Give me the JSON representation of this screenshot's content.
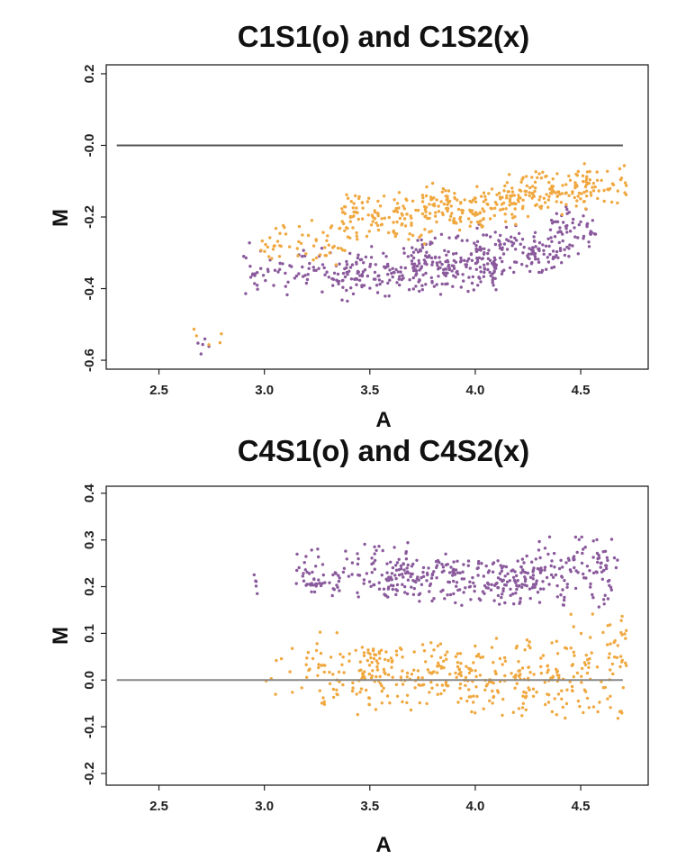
{
  "colors": {
    "s1": "#8a5a9c",
    "s2": "#f0a840",
    "ref_top": "#555555",
    "ref_bottom": "#888888"
  },
  "chart_data": [
    {
      "type": "scatter",
      "title": "C1S1(o) and C1S2(x)",
      "xlabel": "A",
      "ylabel": "M",
      "xlim": [
        2.25,
        4.82
      ],
      "ylim": [
        -0.625,
        0.225
      ],
      "xticks": [
        2.5,
        3.0,
        3.5,
        4.0,
        4.5
      ],
      "xtick_labels": [
        "2.5",
        "3.0",
        "3.5",
        "4.0",
        "4.5"
      ],
      "yticks": [
        0.2,
        0.0,
        -0.2,
        -0.4,
        -0.6
      ],
      "ytick_labels": [
        "0.2",
        "-0.0",
        "-0.2",
        "-0.4",
        "-0.6"
      ],
      "reference_line": 0.0,
      "grid": false,
      "series": [
        {
          "color": "#8a5a9c",
          "clusters": [
            {
              "x": [
                2.68,
                2.76
              ],
              "y": [
                -0.6,
                -0.52
              ],
              "n": 5
            },
            {
              "x": [
                2.9,
                3.35
              ],
              "y": [
                -0.44,
                -0.27
              ],
              "n": 70
            },
            {
              "x": [
                3.35,
                3.75
              ],
              "y": [
                -0.44,
                -0.28
              ],
              "n": 120
            },
            {
              "x": [
                3.7,
                4.1
              ],
              "y": [
                -0.42,
                -0.24
              ],
              "n": 160
            },
            {
              "x": [
                4.0,
                4.45
              ],
              "y": [
                -0.38,
                -0.2
              ],
              "n": 130
            },
            {
              "x": [
                4.35,
                4.6
              ],
              "y": [
                -0.32,
                -0.16
              ],
              "n": 50
            }
          ]
        },
        {
          "color": "#f0a840",
          "clusters": [
            {
              "x": [
                2.62,
                2.85
              ],
              "y": [
                -0.6,
                -0.48
              ],
              "n": 5
            },
            {
              "x": [
                2.95,
                3.4
              ],
              "y": [
                -0.34,
                -0.2
              ],
              "n": 55
            },
            {
              "x": [
                3.35,
                3.8
              ],
              "y": [
                -0.28,
                -0.12
              ],
              "n": 120
            },
            {
              "x": [
                3.75,
                4.2
              ],
              "y": [
                -0.24,
                -0.1
              ],
              "n": 140
            },
            {
              "x": [
                4.15,
                4.55
              ],
              "y": [
                -0.2,
                -0.06
              ],
              "n": 120
            },
            {
              "x": [
                4.5,
                4.72
              ],
              "y": [
                -0.18,
                -0.04
              ],
              "n": 40
            }
          ]
        }
      ]
    },
    {
      "type": "scatter",
      "title": "C4S1(o) and C4S2(x)",
      "xlabel": "A",
      "ylabel": "M",
      "xlim": [
        2.25,
        4.82
      ],
      "ylim": [
        -0.225,
        0.415
      ],
      "xticks": [
        2.5,
        3.0,
        3.5,
        4.0,
        4.5
      ],
      "xtick_labels": [
        "2.5",
        "3.0",
        "3.5",
        "4.0",
        "4.5"
      ],
      "yticks": [
        0.4,
        0.3,
        0.2,
        0.1,
        0.0,
        -0.1,
        -0.2
      ],
      "ytick_labels": [
        "0.4",
        "0.3",
        "0.2",
        "0.1",
        "0.0",
        "-0.1",
        "-0.2"
      ],
      "reference_line": 0.0,
      "grid": false,
      "series": [
        {
          "color": "#8a5a9c",
          "clusters": [
            {
              "x": [
                2.95,
                3.05
              ],
              "y": [
                0.16,
                0.25
              ],
              "n": 5
            },
            {
              "x": [
                3.15,
                3.5
              ],
              "y": [
                0.16,
                0.3
              ],
              "n": 70
            },
            {
              "x": [
                3.5,
                3.9
              ],
              "y": [
                0.16,
                0.3
              ],
              "n": 140
            },
            {
              "x": [
                3.9,
                4.3
              ],
              "y": [
                0.15,
                0.27
              ],
              "n": 140
            },
            {
              "x": [
                4.3,
                4.68
              ],
              "y": [
                0.15,
                0.32
              ],
              "n": 110
            }
          ]
        },
        {
          "color": "#f0a840",
          "clusters": [
            {
              "x": [
                2.95,
                3.2
              ],
              "y": [
                -0.05,
                0.08
              ],
              "n": 10
            },
            {
              "x": [
                3.2,
                3.5
              ],
              "y": [
                -0.08,
                0.12
              ],
              "n": 60
            },
            {
              "x": [
                3.45,
                3.95
              ],
              "y": [
                -0.07,
                0.1
              ],
              "n": 150
            },
            {
              "x": [
                3.95,
                4.4
              ],
              "y": [
                -0.09,
                0.1
              ],
              "n": 140
            },
            {
              "x": [
                4.4,
                4.72
              ],
              "y": [
                -0.12,
                0.16
              ],
              "n": 90
            }
          ]
        }
      ]
    }
  ]
}
